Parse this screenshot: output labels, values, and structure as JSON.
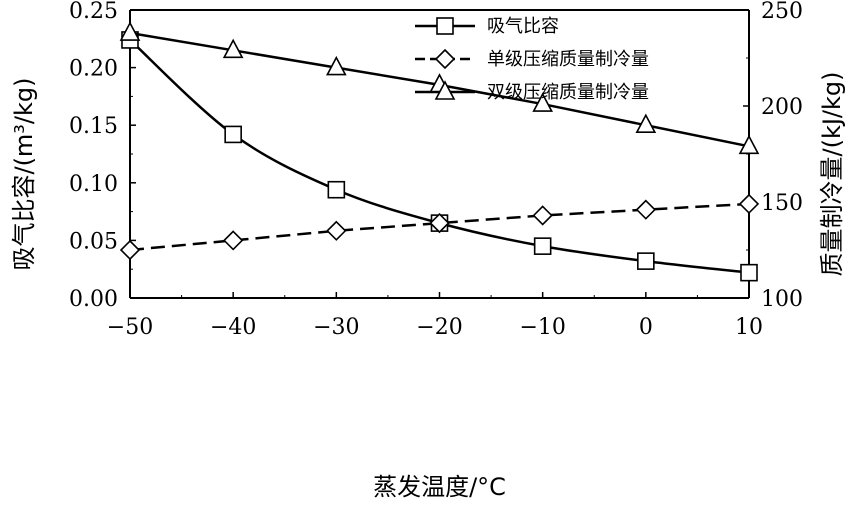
{
  "chart_data": {
    "type": "line",
    "xlabel": "蒸发温度/°C",
    "ylabel_left": "吸气比容/(m³/kg)",
    "ylabel_right": "质量制冷量/(kJ/kg)",
    "xlim": [
      -50,
      10
    ],
    "ylim_left": [
      0,
      0.25
    ],
    "ylim_right": [
      100,
      250
    ],
    "x_ticks": [
      "−50",
      "−40",
      "−30",
      "−20",
      "−10",
      "0",
      "10"
    ],
    "y_left_ticks": [
      "0.00",
      "0.05",
      "0.10",
      "0.15",
      "0.20",
      "0.25"
    ],
    "y_right_ticks": [
      "100",
      "150",
      "200",
      "250"
    ],
    "x": [
      -50,
      -40,
      -30,
      -20,
      -10,
      0,
      10
    ],
    "legend_placement": "top-center",
    "grid": false,
    "series": [
      {
        "name": "吸气比容",
        "axis": "left",
        "marker": "square",
        "dash": "solid",
        "values": [
          0.224,
          0.142,
          0.094,
          0.065,
          0.045,
          0.032,
          0.022
        ]
      },
      {
        "name": "单级压缩质量制冷量",
        "axis": "right",
        "marker": "diamond",
        "dash": "dashed",
        "values": [
          125,
          130,
          135,
          139,
          143,
          146,
          149
        ]
      },
      {
        "name": "双级压缩质量制冷量",
        "axis": "right",
        "marker": "triangle",
        "dash": "solid",
        "values": [
          238,
          229,
          220,
          211,
          201,
          190,
          179
        ]
      }
    ]
  }
}
